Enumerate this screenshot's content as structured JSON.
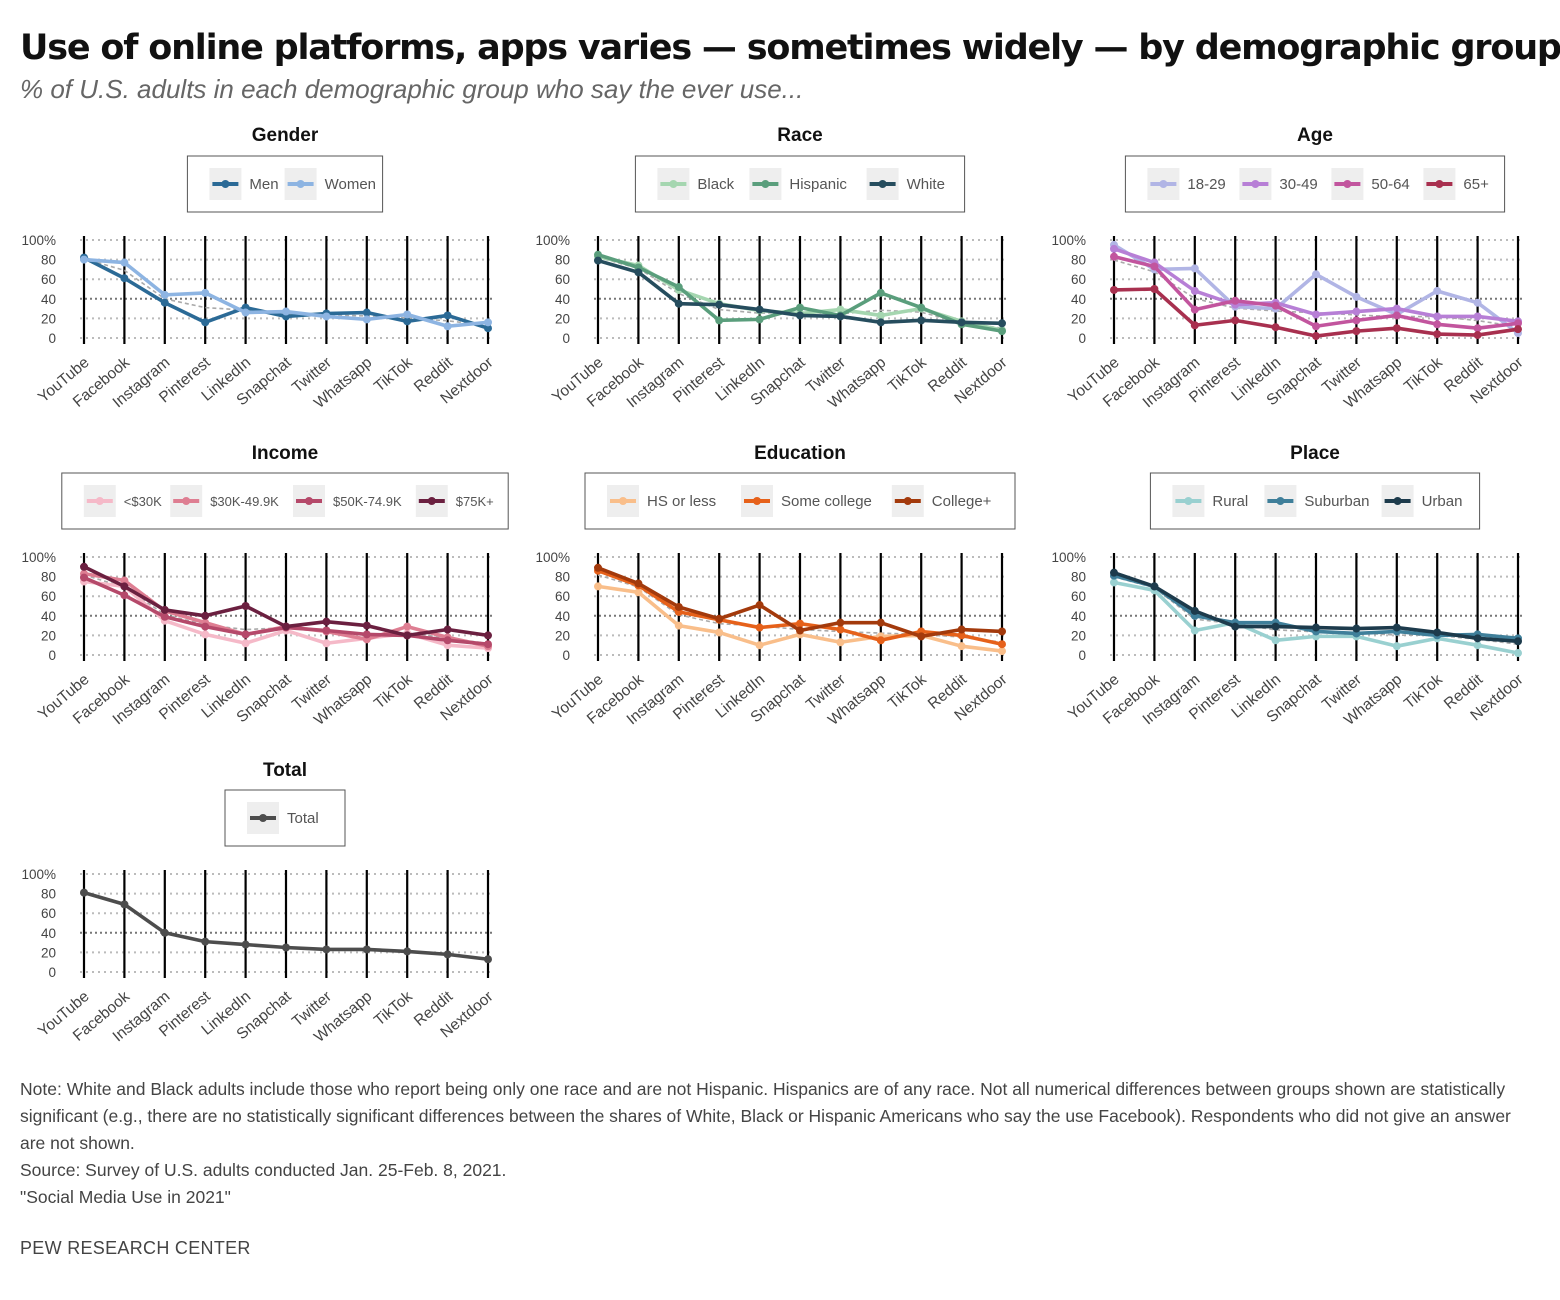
{
  "header": {
    "title": "Use of online platforms, apps varies — sometimes widely — by demographic group",
    "subtitle": "% of U.S. adults in each demographic group who say the ever use..."
  },
  "footer": {
    "note": "Note: White and Black adults include those who report being only one race and are not Hispanic. Hispanics are of any race. Not all numerical differences between groups shown are statistically significant (e.g., there are no statistically significant differences between the shares of White, Black or Hispanic Americans who say the use Facebook). Respondents who did not give an answer are not shown.",
    "source": "Source: Survey of U.S. adults conducted Jan. 25-Feb. 8, 2021.",
    "report": "\"Social Media Use in 2021\"",
    "brand": "PEW RESEARCH CENTER"
  },
  "chart_data": [
    {
      "type": "line",
      "title": "Gender",
      "categories": [
        "YouTube",
        "Facebook",
        "Instagram",
        "Pinterest",
        "LinkedIn",
        "Snapchat",
        "Twitter",
        "Whatsapp",
        "TikTok",
        "Reddit",
        "Nextdoor"
      ],
      "ylim": [
        0,
        100
      ],
      "yticks": [
        "0",
        "20",
        "40",
        "60",
        "80",
        "100%"
      ],
      "grid": true,
      "legend": "top",
      "series": [
        {
          "name": "Men",
          "color": "#2b6a96",
          "values": [
            82,
            61,
            36,
            16,
            31,
            22,
            25,
            26,
            17,
            23,
            10
          ]
        },
        {
          "name": "Women",
          "color": "#8db4e2",
          "values": [
            80,
            77,
            44,
            46,
            26,
            27,
            22,
            19,
            24,
            12,
            16
          ]
        }
      ]
    },
    {
      "type": "line",
      "title": "Race",
      "categories": [
        "YouTube",
        "Facebook",
        "Instagram",
        "Pinterest",
        "LinkedIn",
        "Snapchat",
        "Twitter",
        "Whatsapp",
        "TikTok",
        "Reddit",
        "Nextdoor"
      ],
      "ylim": [
        0,
        100
      ],
      "yticks": [
        "0",
        "20",
        "40",
        "60",
        "80",
        "100%"
      ],
      "grid": true,
      "legend": "top",
      "series": [
        {
          "name": "Black",
          "color": "#a5d6b0",
          "values": [
            83,
            74,
            49,
            35,
            28,
            25,
            29,
            23,
            30,
            17,
            8
          ]
        },
        {
          "name": "Hispanic",
          "color": "#5a9e7c",
          "values": [
            85,
            72,
            52,
            18,
            19,
            31,
            23,
            46,
            31,
            14,
            7
          ]
        },
        {
          "name": "White",
          "color": "#264d5e",
          "values": [
            79,
            67,
            35,
            34,
            29,
            23,
            22,
            16,
            18,
            16,
            15
          ]
        }
      ]
    },
    {
      "type": "line",
      "title": "Age",
      "categories": [
        "YouTube",
        "Facebook",
        "Instagram",
        "Pinterest",
        "LinkedIn",
        "Snapchat",
        "Twitter",
        "Whatsapp",
        "TikTok",
        "Reddit",
        "Nextdoor"
      ],
      "ylim": [
        0,
        100
      ],
      "yticks": [
        "0",
        "20",
        "40",
        "60",
        "80",
        "100%"
      ],
      "grid": true,
      "legend": "top",
      "series": [
        {
          "name": "18-29",
          "color": "#b1b5e5",
          "values": [
            95,
            70,
            71,
            32,
            30,
            65,
            42,
            24,
            48,
            36,
            5
          ]
        },
        {
          "name": "30-49",
          "color": "#b77fd6",
          "values": [
            91,
            77,
            48,
            34,
            36,
            24,
            27,
            30,
            22,
            22,
            17
          ]
        },
        {
          "name": "50-64",
          "color": "#c2559e",
          "values": [
            83,
            73,
            29,
            38,
            33,
            12,
            18,
            23,
            14,
            10,
            15
          ]
        },
        {
          "name": "65+",
          "color": "#a8304f",
          "values": [
            49,
            50,
            13,
            18,
            11,
            2,
            7,
            10,
            4,
            3,
            9
          ]
        }
      ]
    },
    {
      "type": "line",
      "title": "Income",
      "categories": [
        "YouTube",
        "Facebook",
        "Instagram",
        "Pinterest",
        "LinkedIn",
        "Snapchat",
        "Twitter",
        "Whatsapp",
        "TikTok",
        "Reddit",
        "Nextdoor"
      ],
      "ylim": [
        0,
        100
      ],
      "yticks": [
        "0",
        "20",
        "40",
        "60",
        "80",
        "100%"
      ],
      "grid": true,
      "legend": "top",
      "series": [
        {
          "name": "<$30K",
          "color": "#f5b9c8",
          "values": [
            75,
            70,
            35,
            21,
            12,
            25,
            12,
            17,
            22,
            10,
            7
          ]
        },
        {
          "name": "$30K-49.9K",
          "color": "#de7e92",
          "values": [
            83,
            76,
            45,
            33,
            21,
            29,
            24,
            16,
            29,
            18,
            9
          ]
        },
        {
          "name": "$50K-74.9K",
          "color": "#b5496a",
          "values": [
            79,
            61,
            39,
            29,
            21,
            28,
            25,
            21,
            20,
            15,
            11
          ]
        },
        {
          "name": "$75K+",
          "color": "#6b2040",
          "values": [
            90,
            70,
            46,
            40,
            50,
            29,
            34,
            30,
            20,
            26,
            20
          ]
        }
      ]
    },
    {
      "type": "line",
      "title": "Education",
      "categories": [
        "YouTube",
        "Facebook",
        "Instagram",
        "Pinterest",
        "LinkedIn",
        "Snapchat",
        "Twitter",
        "Whatsapp",
        "TikTok",
        "Reddit",
        "Nextdoor"
      ],
      "ylim": [
        0,
        100
      ],
      "yticks": [
        "0",
        "20",
        "40",
        "60",
        "80",
        "100%"
      ],
      "grid": true,
      "legend": "top",
      "series": [
        {
          "name": "HS or less",
          "color": "#f9be8a",
          "values": [
            70,
            64,
            30,
            23,
            10,
            21,
            13,
            19,
            20,
            9,
            4
          ]
        },
        {
          "name": "Some college",
          "color": "#e6611a",
          "values": [
            86,
            71,
            44,
            36,
            28,
            32,
            26,
            15,
            24,
            20,
            11
          ]
        },
        {
          "name": "College+",
          "color": "#a33a0c",
          "values": [
            89,
            73,
            49,
            37,
            51,
            25,
            33,
            33,
            19,
            26,
            24
          ]
        }
      ]
    },
    {
      "type": "line",
      "title": "Place",
      "categories": [
        "YouTube",
        "Facebook",
        "Instagram",
        "Pinterest",
        "LinkedIn",
        "Snapchat",
        "Twitter",
        "Whatsapp",
        "TikTok",
        "Reddit",
        "Nextdoor"
      ],
      "ylim": [
        0,
        100
      ],
      "yticks": [
        "0",
        "20",
        "40",
        "60",
        "80",
        "100%"
      ],
      "grid": true,
      "legend": "top",
      "series": [
        {
          "name": "Rural",
          "color": "#99d0d0",
          "values": [
            74,
            66,
            25,
            33,
            15,
            19,
            19,
            9,
            17,
            10,
            2
          ]
        },
        {
          "name": "Suburban",
          "color": "#3f7f9a",
          "values": [
            81,
            70,
            40,
            33,
            33,
            24,
            22,
            24,
            20,
            21,
            17
          ]
        },
        {
          "name": "Urban",
          "color": "#1d3b4c",
          "values": [
            84,
            70,
            45,
            29,
            29,
            28,
            27,
            28,
            23,
            17,
            14
          ]
        }
      ]
    },
    {
      "type": "line",
      "title": "Total",
      "categories": [
        "YouTube",
        "Facebook",
        "Instagram",
        "Pinterest",
        "LinkedIn",
        "Snapchat",
        "Twitter",
        "Whatsapp",
        "TikTok",
        "Reddit",
        "Nextdoor"
      ],
      "ylim": [
        0,
        100
      ],
      "yticks": [
        "0",
        "20",
        "40",
        "60",
        "80",
        "100%"
      ],
      "grid": true,
      "legend": "top",
      "series": [
        {
          "name": "Total",
          "color": "#4d4d4d",
          "values": [
            81,
            69,
            40,
            31,
            28,
            25,
            23,
            23,
            21,
            18,
            13
          ]
        }
      ]
    }
  ]
}
